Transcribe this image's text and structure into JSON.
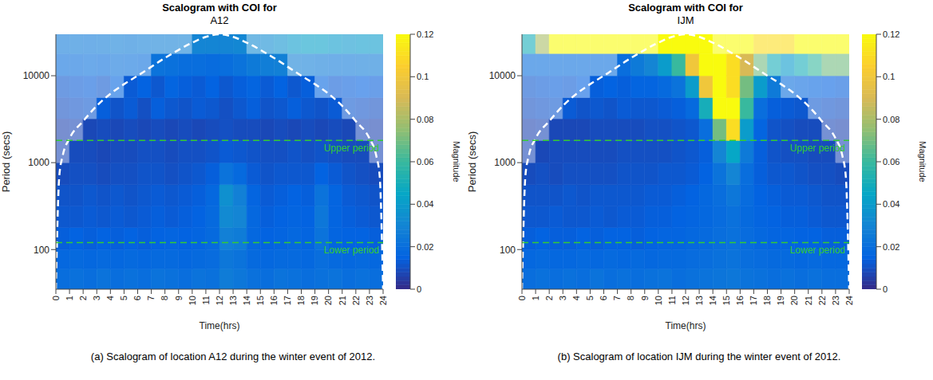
{
  "chart_data": [
    {
      "type": "heatmap",
      "title": "Scalogram with COI for",
      "subtitle": "A12",
      "caption": "(a) Scalogram of location A12 during the winter event of 2012.",
      "x_label": "Time(hrs)",
      "y_label": "Period (secs)",
      "log": "y",
      "xlim": [
        0,
        24
      ],
      "xticks": [
        0,
        1,
        2,
        3,
        4,
        5,
        6,
        7,
        8,
        9,
        10,
        11,
        12,
        13,
        14,
        15,
        16,
        17,
        18,
        19,
        20,
        21,
        22,
        23,
        24
      ],
      "ylim": [
        35,
        30000
      ],
      "yticks": [
        100,
        1000,
        10000
      ],
      "heatmap": {
        "x_edges": [
          0,
          1,
          2,
          3,
          4,
          5,
          6,
          7,
          8,
          9,
          10,
          11,
          12,
          13,
          14,
          15,
          16,
          17,
          18,
          19,
          20,
          21,
          22,
          23,
          24
        ],
        "y_edges": [
          35,
          60,
          100,
          180,
          320,
          560,
          1000,
          1800,
          3200,
          5600,
          10000,
          18000,
          30000
        ],
        "cells": [
          [
            0.02,
            0.021,
            0.02,
            0.022,
            0.02,
            0.021,
            0.02,
            0.022,
            0.021,
            0.02,
            0.022,
            0.021,
            0.026,
            0.024,
            0.021,
            0.02,
            0.022,
            0.021,
            0.02,
            0.021,
            0.022,
            0.02,
            0.021,
            0.02
          ],
          [
            0.017,
            0.018,
            0.017,
            0.018,
            0.017,
            0.018,
            0.017,
            0.018,
            0.018,
            0.017,
            0.018,
            0.019,
            0.024,
            0.022,
            0.018,
            0.017,
            0.018,
            0.018,
            0.017,
            0.02,
            0.018,
            0.017,
            0.018,
            0.017
          ],
          [
            0.014,
            0.015,
            0.014,
            0.015,
            0.014,
            0.015,
            0.014,
            0.015,
            0.016,
            0.015,
            0.016,
            0.018,
            0.028,
            0.026,
            0.017,
            0.015,
            0.016,
            0.017,
            0.016,
            0.022,
            0.016,
            0.015,
            0.015,
            0.014
          ],
          [
            0.012,
            0.012,
            0.013,
            0.012,
            0.013,
            0.012,
            0.013,
            0.014,
            0.013,
            0.014,
            0.015,
            0.018,
            0.032,
            0.03,
            0.017,
            0.014,
            0.015,
            0.016,
            0.015,
            0.024,
            0.016,
            0.014,
            0.013,
            0.012
          ],
          [
            0.011,
            0.011,
            0.012,
            0.011,
            0.012,
            0.011,
            0.012,
            0.013,
            0.012,
            0.013,
            0.014,
            0.017,
            0.035,
            0.028,
            0.016,
            0.013,
            0.014,
            0.015,
            0.014,
            0.022,
            0.016,
            0.013,
            0.012,
            0.011
          ],
          [
            0.009,
            0.01,
            0.01,
            0.009,
            0.01,
            0.01,
            0.011,
            0.011,
            0.01,
            0.011,
            0.012,
            0.014,
            0.022,
            0.018,
            0.013,
            0.011,
            0.012,
            0.012,
            0.012,
            0.015,
            0.013,
            0.011,
            0.01,
            0.009
          ],
          [
            0.008,
            0.009,
            0.009,
            0.008,
            0.009,
            0.009,
            0.01,
            0.01,
            0.009,
            0.01,
            0.01,
            0.011,
            0.013,
            0.012,
            0.011,
            0.01,
            0.01,
            0.011,
            0.01,
            0.011,
            0.01,
            0.009,
            0.009,
            0.008
          ],
          [
            0.007,
            0.008,
            0.008,
            0.009,
            0.008,
            0.009,
            0.008,
            0.009,
            0.008,
            0.009,
            0.008,
            0.009,
            0.01,
            0.009,
            0.009,
            0.008,
            0.009,
            0.008,
            0.009,
            0.008,
            0.009,
            0.008,
            0.008,
            0.007
          ],
          [
            0.01,
            0.011,
            0.012,
            0.014,
            0.011,
            0.013,
            0.01,
            0.014,
            0.012,
            0.011,
            0.013,
            0.012,
            0.01,
            0.012,
            0.014,
            0.011,
            0.012,
            0.014,
            0.012,
            0.011,
            0.013,
            0.012,
            0.011,
            0.01
          ],
          [
            0.012,
            0.013,
            0.014,
            0.012,
            0.016,
            0.013,
            0.015,
            0.012,
            0.016,
            0.014,
            0.013,
            0.015,
            0.012,
            0.014,
            0.016,
            0.013,
            0.015,
            0.012,
            0.014,
            0.016,
            0.013,
            0.014,
            0.015,
            0.014
          ],
          [
            0.02,
            0.02,
            0.021,
            0.02,
            0.022,
            0.021,
            0.02,
            0.022,
            0.021,
            0.02,
            0.02,
            0.019,
            0.02,
            0.022,
            0.025,
            0.027,
            0.028,
            0.028,
            0.027,
            0.026,
            0.025,
            0.025,
            0.026,
            0.026
          ],
          [
            0.025,
            0.026,
            0.025,
            0.026,
            0.027,
            0.026,
            0.027,
            0.028,
            0.028,
            0.029,
            0.03,
            0.03,
            0.03,
            0.031,
            0.032,
            0.033,
            0.036,
            0.04,
            0.042,
            0.042,
            0.04,
            0.038,
            0.04,
            0.04
          ]
        ]
      },
      "colorbar": {
        "label": "Magnitude",
        "range": [
          0,
          0.12
        ],
        "ticks": [
          0,
          0.02,
          0.04,
          0.06,
          0.08,
          0.1,
          0.12
        ]
      },
      "coi": {
        "x": [
          0,
          0.25,
          0.5,
          1,
          2,
          3,
          4,
          5,
          6,
          8,
          10,
          11,
          12,
          13,
          14,
          16,
          18,
          19,
          20,
          21,
          22,
          23,
          23.5,
          23.75,
          24
        ],
        "y": [
          35,
          700,
          1200,
          1900,
          3000,
          4500,
          6200,
          8000,
          10000,
          16000,
          24000,
          28000,
          30000,
          28000,
          24000,
          16000,
          10000,
          8000,
          6200,
          4500,
          3000,
          1900,
          1200,
          700,
          35
        ],
        "color": "#ffffff",
        "line_style": "dashed"
      },
      "reference_lines": [
        {
          "value": 1800,
          "label": "Upper period",
          "color": "#33cc33",
          "line_style": "dashed"
        },
        {
          "value": 120,
          "label": "Lower period",
          "color": "#33cc33",
          "line_style": "dashed"
        }
      ]
    },
    {
      "type": "heatmap",
      "title": "Scalogram with COI for",
      "subtitle": "IJM",
      "caption": "(b) Scalogram of location IJM during the winter event of 2012.",
      "x_label": "Time(hrs)",
      "y_label": "Period (secs)",
      "log": "y",
      "xlim": [
        0,
        24
      ],
      "xticks": [
        0,
        1,
        2,
        3,
        4,
        5,
        6,
        7,
        8,
        9,
        10,
        11,
        12,
        13,
        14,
        15,
        16,
        17,
        18,
        19,
        20,
        21,
        22,
        23,
        24
      ],
      "ylim": [
        35,
        30000
      ],
      "yticks": [
        100,
        1000,
        10000
      ],
      "heatmap": {
        "x_edges": [
          0,
          1,
          2,
          3,
          4,
          5,
          6,
          7,
          8,
          9,
          10,
          11,
          12,
          13,
          14,
          15,
          16,
          17,
          18,
          19,
          20,
          21,
          22,
          23,
          24
        ],
        "y_edges": [
          35,
          60,
          100,
          180,
          320,
          560,
          1000,
          1800,
          3200,
          5600,
          10000,
          18000,
          30000
        ],
        "cells": [
          [
            0.02,
            0.021,
            0.02,
            0.021,
            0.02,
            0.022,
            0.02,
            0.021,
            0.02,
            0.021,
            0.022,
            0.02,
            0.021,
            0.022,
            0.023,
            0.024,
            0.022,
            0.021,
            0.02,
            0.021,
            0.02,
            0.021,
            0.02,
            0.02
          ],
          [
            0.017,
            0.018,
            0.017,
            0.017,
            0.018,
            0.017,
            0.018,
            0.017,
            0.018,
            0.017,
            0.018,
            0.018,
            0.019,
            0.02,
            0.021,
            0.022,
            0.02,
            0.019,
            0.018,
            0.018,
            0.017,
            0.018,
            0.017,
            0.017
          ],
          [
            0.014,
            0.015,
            0.014,
            0.014,
            0.015,
            0.014,
            0.015,
            0.015,
            0.014,
            0.015,
            0.016,
            0.016,
            0.017,
            0.018,
            0.02,
            0.021,
            0.019,
            0.017,
            0.016,
            0.016,
            0.015,
            0.015,
            0.014,
            0.014
          ],
          [
            0.012,
            0.012,
            0.013,
            0.012,
            0.012,
            0.013,
            0.012,
            0.013,
            0.013,
            0.014,
            0.014,
            0.015,
            0.016,
            0.017,
            0.019,
            0.021,
            0.018,
            0.016,
            0.015,
            0.014,
            0.014,
            0.013,
            0.012,
            0.012
          ],
          [
            0.011,
            0.011,
            0.011,
            0.012,
            0.011,
            0.012,
            0.012,
            0.012,
            0.012,
            0.013,
            0.013,
            0.014,
            0.015,
            0.017,
            0.02,
            0.024,
            0.019,
            0.015,
            0.014,
            0.013,
            0.013,
            0.012,
            0.011,
            0.011
          ],
          [
            0.009,
            0.01,
            0.009,
            0.01,
            0.01,
            0.01,
            0.01,
            0.011,
            0.011,
            0.011,
            0.012,
            0.012,
            0.013,
            0.015,
            0.022,
            0.03,
            0.02,
            0.014,
            0.012,
            0.012,
            0.011,
            0.01,
            0.01,
            0.009
          ],
          [
            0.008,
            0.008,
            0.009,
            0.009,
            0.009,
            0.009,
            0.009,
            0.01,
            0.01,
            0.01,
            0.01,
            0.011,
            0.012,
            0.014,
            0.03,
            0.045,
            0.025,
            0.014,
            0.011,
            0.01,
            0.01,
            0.009,
            0.009,
            0.008
          ],
          [
            0.007,
            0.008,
            0.008,
            0.008,
            0.008,
            0.009,
            0.009,
            0.009,
            0.009,
            0.01,
            0.01,
            0.011,
            0.012,
            0.02,
            0.07,
            0.11,
            0.04,
            0.016,
            0.011,
            0.01,
            0.009,
            0.009,
            0.008,
            0.007
          ],
          [
            0.01,
            0.011,
            0.012,
            0.013,
            0.011,
            0.012,
            0.011,
            0.013,
            0.012,
            0.012,
            0.013,
            0.014,
            0.018,
            0.05,
            0.12,
            0.12,
            0.06,
            0.02,
            0.014,
            0.013,
            0.012,
            0.012,
            0.011,
            0.01
          ],
          [
            0.012,
            0.013,
            0.014,
            0.013,
            0.015,
            0.014,
            0.015,
            0.014,
            0.016,
            0.016,
            0.018,
            0.022,
            0.04,
            0.1,
            0.12,
            0.11,
            0.07,
            0.04,
            0.025,
            0.02,
            0.018,
            0.016,
            0.015,
            0.014
          ],
          [
            0.02,
            0.02,
            0.02,
            0.02,
            0.02,
            0.02,
            0.02,
            0.02,
            0.025,
            0.03,
            0.04,
            0.06,
            0.1,
            0.12,
            0.12,
            0.11,
            0.09,
            0.07,
            0.05,
            0.04,
            0.05,
            0.06,
            0.07,
            0.07
          ],
          [
            0.05,
            0.08,
            0.12,
            0.12,
            0.12,
            0.12,
            0.12,
            0.12,
            0.12,
            0.12,
            0.12,
            0.12,
            0.12,
            0.12,
            0.12,
            0.12,
            0.12,
            0.11,
            0.11,
            0.11,
            0.12,
            0.12,
            0.12,
            0.12
          ]
        ]
      },
      "colorbar": {
        "label": "Magnitude",
        "range": [
          0,
          0.12
        ],
        "ticks": [
          0,
          0.02,
          0.04,
          0.06,
          0.08,
          0.1,
          0.12
        ]
      },
      "coi": {
        "x": [
          0,
          0.25,
          0.5,
          1,
          2,
          3,
          4,
          5,
          6,
          8,
          10,
          11,
          12,
          13,
          14,
          16,
          18,
          19,
          20,
          21,
          22,
          23,
          23.5,
          23.75,
          24
        ],
        "y": [
          35,
          700,
          1200,
          1900,
          3000,
          4500,
          6200,
          8000,
          10000,
          16000,
          24000,
          28000,
          30000,
          28000,
          24000,
          16000,
          10000,
          8000,
          6200,
          4500,
          3000,
          1900,
          1200,
          700,
          35
        ],
        "color": "#ffffff",
        "line_style": "dashed"
      },
      "reference_lines": [
        {
          "value": 1800,
          "label": "Upper period",
          "color": "#33cc33",
          "line_style": "dashed"
        },
        {
          "value": 120,
          "label": "Lower period",
          "color": "#33cc33",
          "line_style": "dashed"
        }
      ]
    }
  ]
}
